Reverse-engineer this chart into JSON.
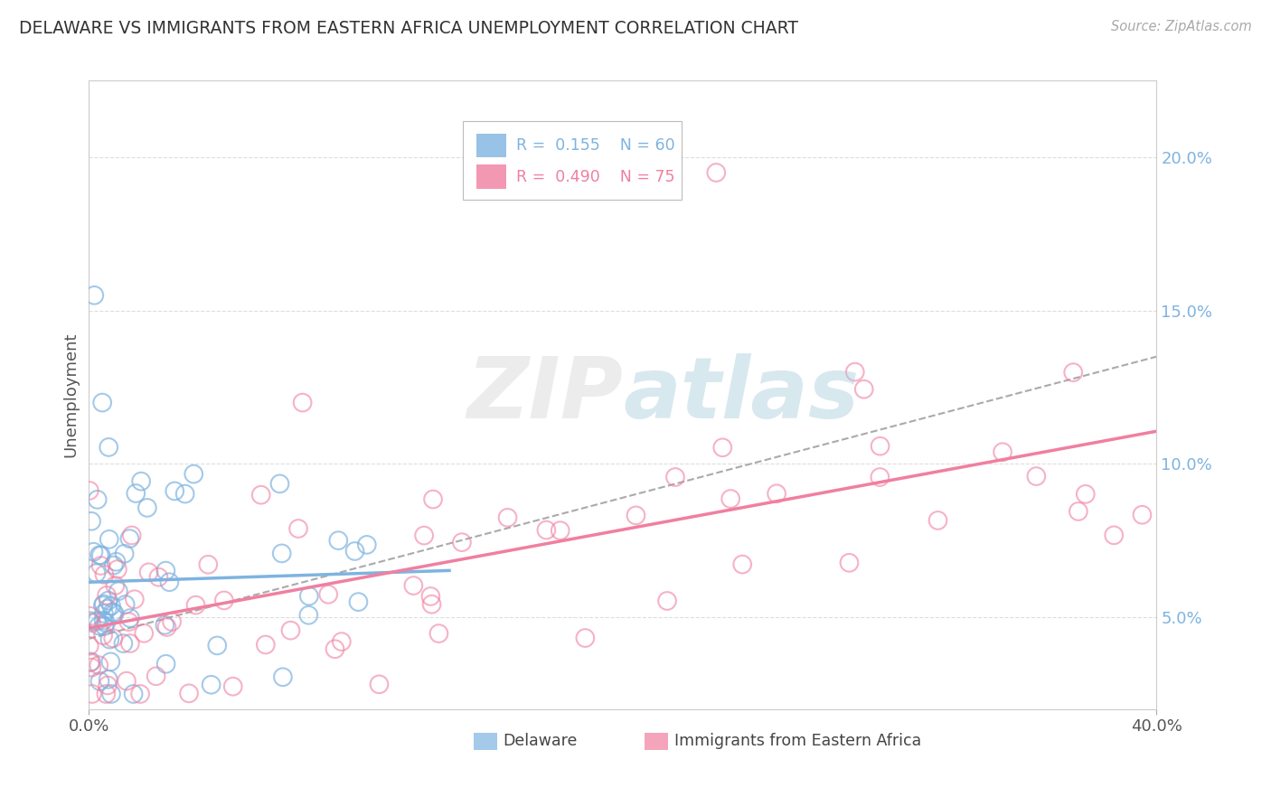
{
  "title": "DELAWARE VS IMMIGRANTS FROM EASTERN AFRICA UNEMPLOYMENT CORRELATION CHART",
  "source": "Source: ZipAtlas.com",
  "ylabel": "Unemployment",
  "right_yticks": [
    "5.0%",
    "10.0%",
    "15.0%",
    "20.0%"
  ],
  "right_ytick_vals": [
    0.05,
    0.1,
    0.15,
    0.2
  ],
  "xlim": [
    0.0,
    0.4
  ],
  "ylim": [
    0.02,
    0.225
  ],
  "delaware_R": "0.155",
  "delaware_N": "60",
  "eastern_africa_R": "0.490",
  "eastern_africa_N": "75",
  "delaware_color": "#7EB3E0",
  "eastern_africa_color": "#F07FA0",
  "background_color": "#FFFFFF",
  "watermark": "ZIPatlas",
  "legend_delaware": "Delaware",
  "legend_eastern_africa": "Immigrants from Eastern Africa",
  "grid_color": "#DDDDDD",
  "legend_box_color": "#CCCCCC"
}
